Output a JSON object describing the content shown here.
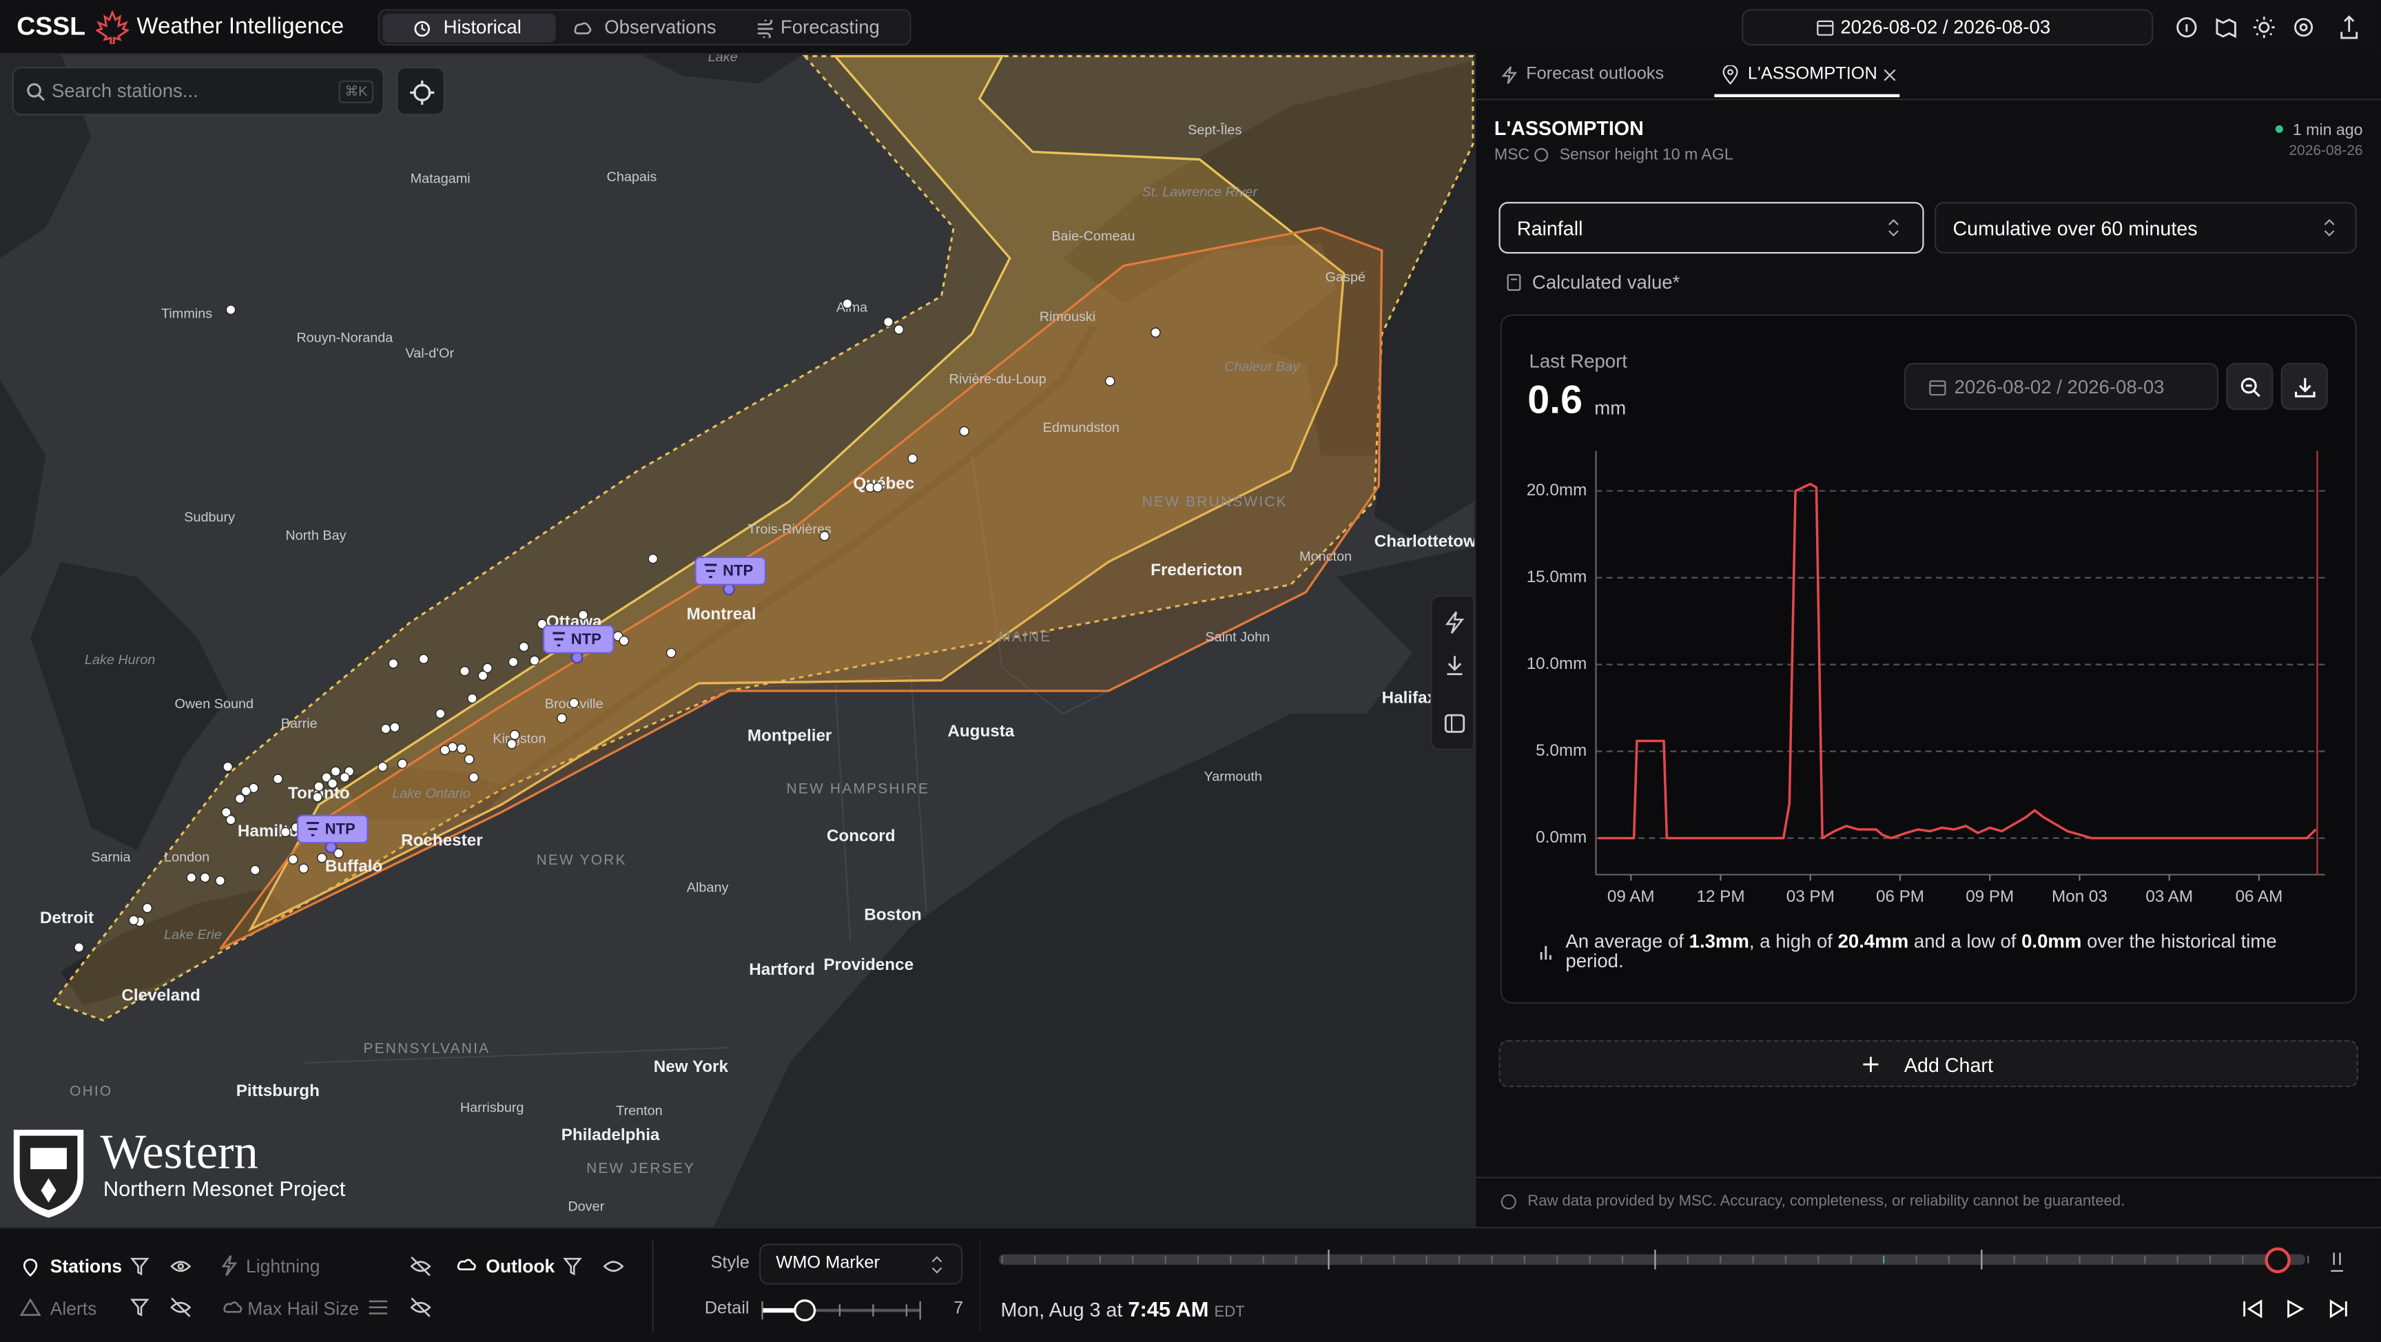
{
  "header": {
    "brand": "CSSL",
    "app_name": "Weather Intelligence",
    "tabs": [
      "Historical",
      "Observations",
      "Forecasting"
    ],
    "date_range": "2026-08-02 / 2026-08-03"
  },
  "search": {
    "placeholder": "Search stations...",
    "shortcut": "⌘K"
  },
  "map": {
    "labels": [
      "Lake",
      "Sept-Îles",
      "Matagami",
      "Chapais",
      "Timmins",
      "Rouyn-Noranda",
      "Val-d'Or",
      "Alma",
      "Baie-Comeau",
      "St. Lawrence River",
      "Gaspé",
      "Rimouski",
      "Chaleur Bay",
      "Rivière-du-Loup",
      "Edmundston",
      "Québec",
      "Trois-Rivières",
      "Sudbury",
      "North Bay",
      "Montreal",
      "NEW BRUNSWICK",
      "Fredericton",
      "Charlottetown",
      "Moncton",
      "Ottawa",
      "MAINE",
      "Saint John",
      "Lake Huron",
      "Owen Sound",
      "Barrie",
      "Brockville",
      "Kingston",
      "Halifax",
      "Montpelier",
      "Augusta",
      "Yarmouth",
      "Toronto",
      "Lake Ontario",
      "Hamilton",
      "Rochester",
      "Buffalo",
      "NEW HAMPSHIRE",
      "Concord",
      "NEW YORK",
      "Sarnia",
      "London",
      "Detroit",
      "Lake Erie",
      "Albany",
      "Boston",
      "Cleveland",
      "Hartford",
      "Providence",
      "PENNSYLVANIA",
      "OHIO",
      "Pittsburgh",
      "New York",
      "Harrisburg",
      "Trenton",
      "Philadelphia",
      "NEW JERSEY",
      "Dover"
    ],
    "outlook_badges": [
      "NTP",
      "NTP",
      "NTP"
    ],
    "logo": {
      "title": "Western",
      "subtitle": "Northern Mesonet Project"
    }
  },
  "panel": {
    "tabs": [
      "Forecast outlooks",
      "L'ASSOMPTION"
    ],
    "station": {
      "name": "L'ASSOMPTION",
      "network": "MSC",
      "sensor": "Sensor height 10 m AGL",
      "updated": "1 min ago",
      "date": "2026-08-26"
    },
    "variable": "Rainfall",
    "aggregation": "Cumulative over 60 minutes",
    "calculated_note": "Calculated value*",
    "last_report": {
      "label": "Last Report",
      "value": 0.6,
      "unit": "mm"
    },
    "date_range": "2026-08-02 / 2026-08-03",
    "summary": [
      "An average of ",
      "1.3mm",
      ", a high of ",
      "20.4mm",
      " and a low of ",
      "0.0mm",
      " over the historical time period."
    ],
    "add_chart": "Add Chart",
    "disclaimer": "Raw data provided by MSC. Accuracy, completeness, or reliability cannot be guaranteed."
  },
  "chart_data": {
    "type": "line",
    "x": [
      7.9,
      9.1,
      9.2,
      10.1,
      10.2,
      14.1,
      14.3,
      14.5,
      15.0,
      15.2,
      15.4,
      15.8,
      16.2,
      16.6,
      17.2,
      17.4,
      17.7,
      18.2,
      18.6,
      19.0,
      19.4,
      19.8,
      20.2,
      20.6,
      21.0,
      21.4,
      21.8,
      22.2,
      22.5,
      22.8,
      23.2,
      23.6,
      24.0,
      24.4,
      31.6,
      31.9
    ],
    "series": [
      {
        "name": "Rainfall",
        "color": "#e5484d",
        "values": [
          0,
          0,
          5.6,
          5.6,
          0,
          0,
          2,
          20.0,
          20.4,
          20.2,
          0,
          0.4,
          0.7,
          0.5,
          0.5,
          0.2,
          0,
          0.3,
          0.5,
          0.4,
          0.6,
          0.5,
          0.7,
          0.3,
          0.6,
          0.4,
          0.8,
          1.2,
          1.6,
          1.2,
          0.8,
          0.4,
          0.2,
          0,
          0,
          0.5
        ]
      }
    ],
    "xlim": [
      7.83,
      32.2
    ],
    "xticks": [
      {
        "value": 9,
        "label": "09 AM"
      },
      {
        "value": 12,
        "label": "12 PM"
      },
      {
        "value": 15,
        "label": "03 PM"
      },
      {
        "value": 18,
        "label": "06 PM"
      },
      {
        "value": 21,
        "label": "09 PM"
      },
      {
        "value": 24,
        "label": "Mon 03"
      },
      {
        "value": 27,
        "label": "03 AM"
      },
      {
        "value": 30,
        "label": "06 AM"
      }
    ],
    "ylim": [
      -2.1,
      22.3
    ],
    "yticks": [
      {
        "value": 0,
        "label": "0.0mm"
      },
      {
        "value": 5,
        "label": "5.0mm"
      },
      {
        "value": 10,
        "label": "10.0mm"
      },
      {
        "value": 15,
        "label": "15.0mm"
      },
      {
        "value": 20,
        "label": "20.0mm"
      }
    ],
    "grid": true
  },
  "bottom": {
    "layers": [
      "Stations",
      "Lightning",
      "Outlook",
      "Alerts",
      "Max Hail Size"
    ],
    "style_label": "Style",
    "style": "WMO Marker",
    "detail_label": "Detail",
    "detail": 7,
    "time": {
      "prefix": "Mon, Aug 3 at",
      "time": "7:45 AM",
      "zone": "EDT"
    }
  }
}
